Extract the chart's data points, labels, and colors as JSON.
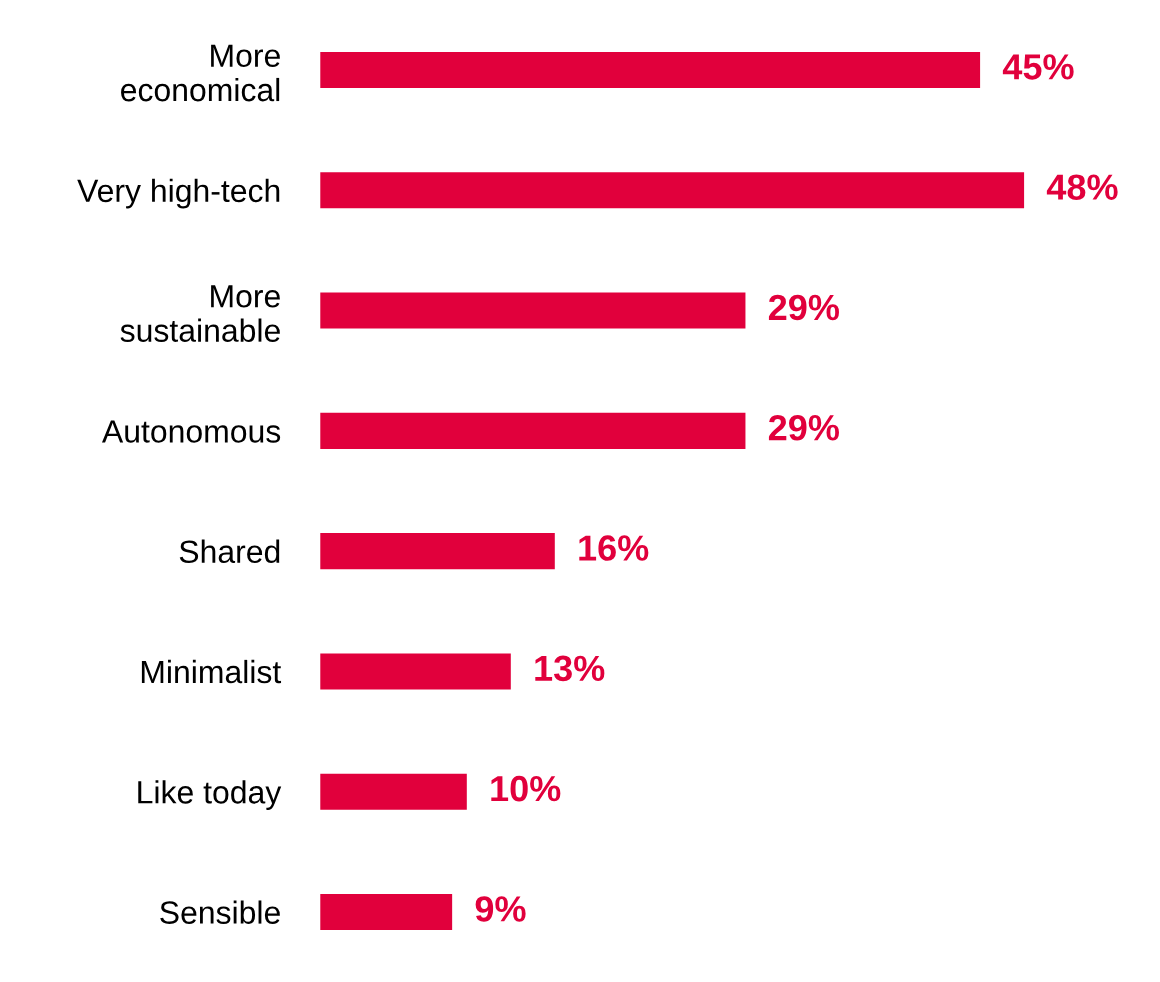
{
  "chart_data": {
    "type": "bar",
    "orientation": "horizontal",
    "categories": [
      "More\neconomical",
      "Very high-tech",
      "More\nsustainable",
      "Autonomous",
      "Shared",
      "Minimalist",
      "Like today",
      "Sensible"
    ],
    "values": [
      45,
      48,
      29,
      29,
      16,
      13,
      10,
      9
    ],
    "value_labels": [
      "45%",
      "48%",
      "29%",
      "29%",
      "16%",
      "13%",
      "10%",
      "9%"
    ],
    "color": "#e1003c",
    "grid": false,
    "tick_labels": "y"
  }
}
